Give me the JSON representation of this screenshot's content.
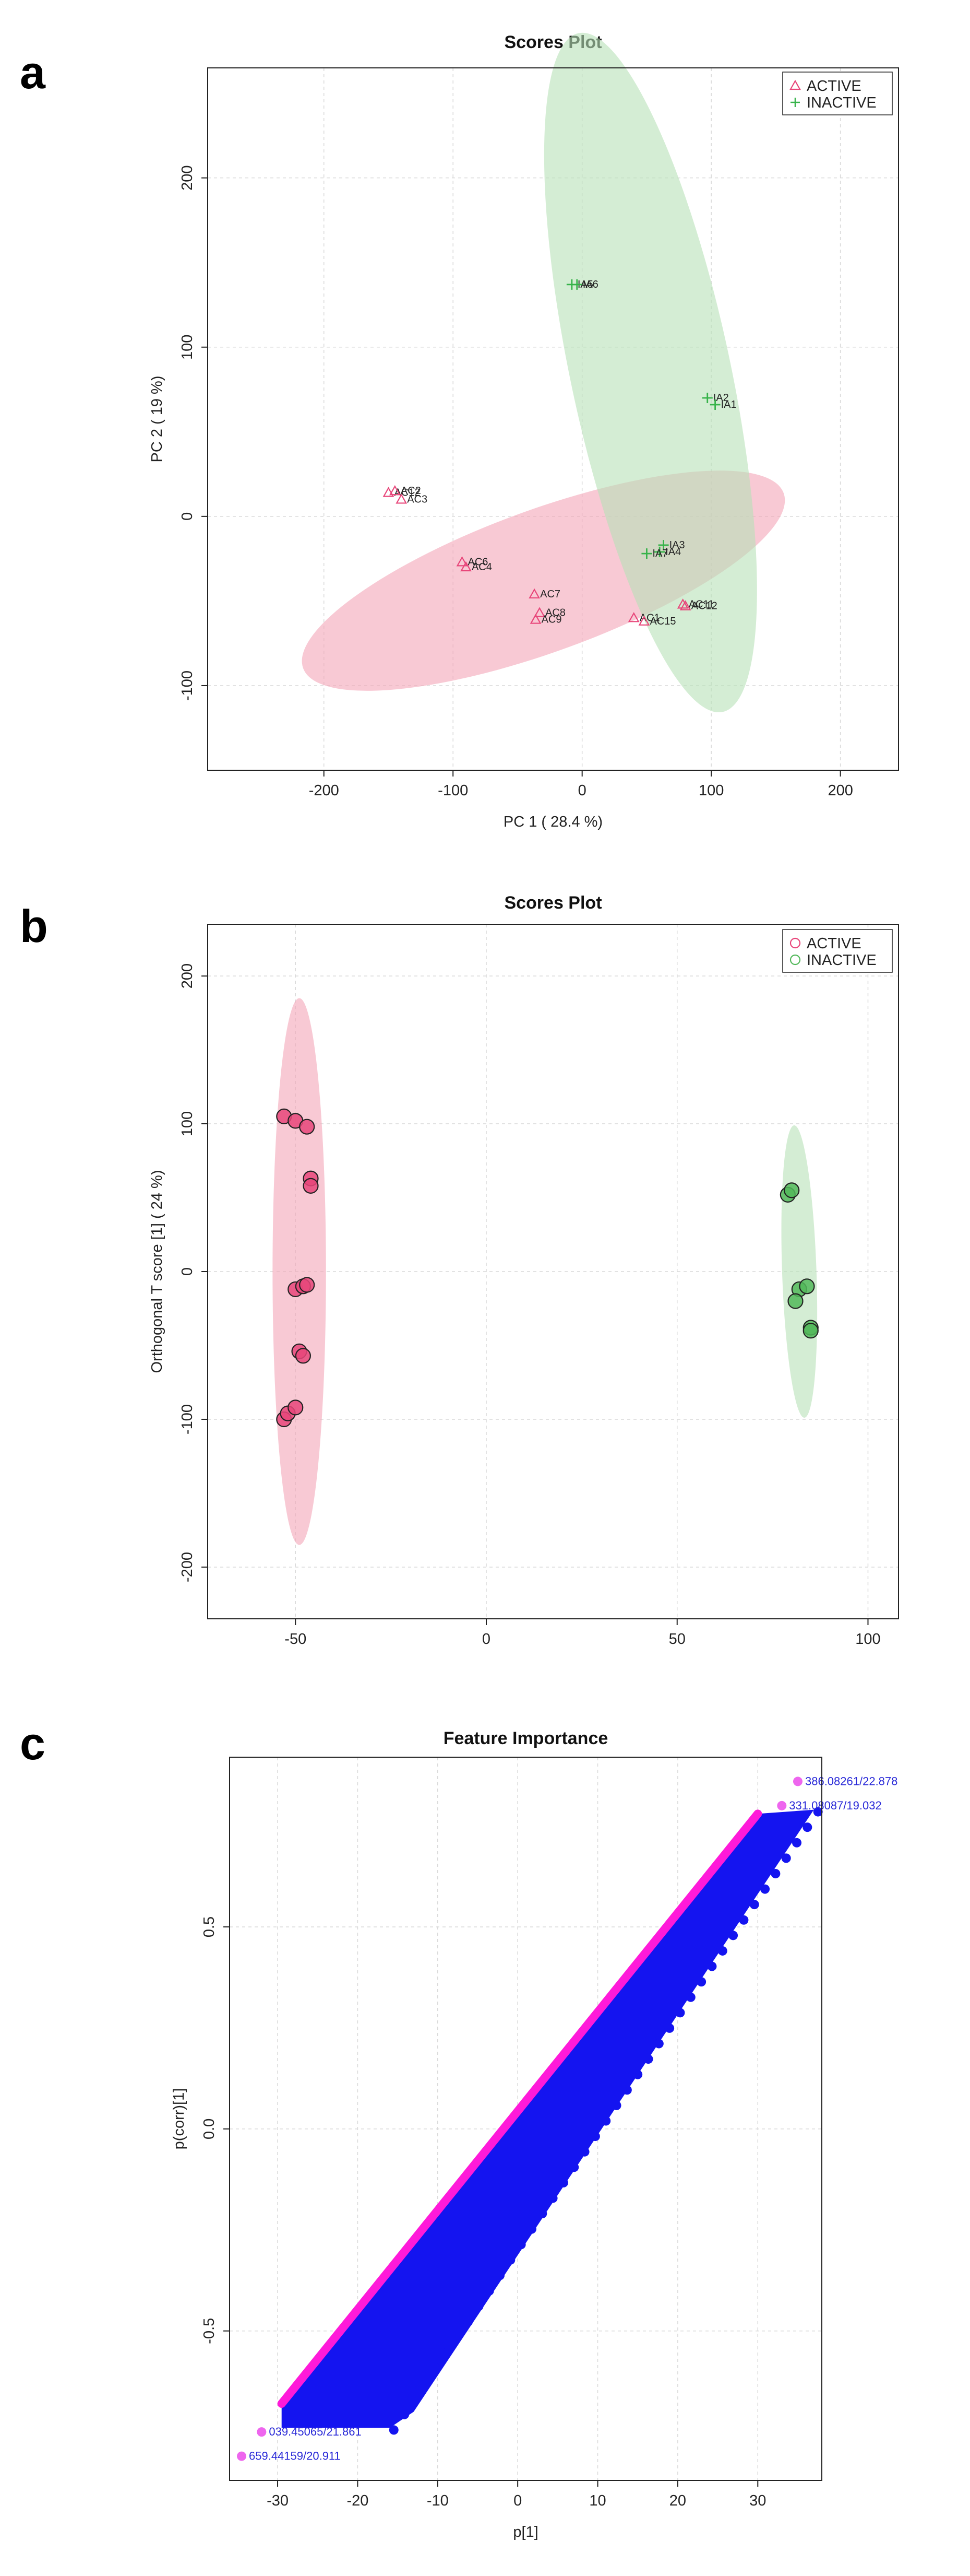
{
  "panels": [
    "a",
    "b",
    "c"
  ],
  "chart_data": [
    {
      "type": "scatter",
      "title": "Scores Plot",
      "xlabel": "PC 1 ( 28.4 %)",
      "ylabel": "PC 2 ( 19 %)",
      "xlim": [
        -290,
        245
      ],
      "ylim": [
        -150,
        265
      ],
      "xticks": [
        -200,
        -100,
        0,
        100,
        200
      ],
      "yticks": [
        -100,
        0,
        100,
        200
      ],
      "grid": true,
      "legend_position": "top-right",
      "series": [
        {
          "name": "ACTIVE",
          "marker": "triangle",
          "color": "#e8467a",
          "ellipse_color": "#f4a5b8",
          "ellipse": {
            "cx": -30,
            "cy": -38,
            "rx": 198,
            "ry": 42,
            "angle_deg": -20
          },
          "points": [
            {
              "x": -150,
              "y": 14,
              "label": "AC12"
            },
            {
              "x": -145,
              "y": 15,
              "label": "AC2"
            },
            {
              "x": -140,
              "y": 10,
              "label": "AC3"
            },
            {
              "x": -93,
              "y": -27,
              "label": "AC6"
            },
            {
              "x": -90,
              "y": -30,
              "label": "AC4"
            },
            {
              "x": -37,
              "y": -46,
              "label": "AC7"
            },
            {
              "x": -33,
              "y": -57,
              "label": "AC8"
            },
            {
              "x": -36,
              "y": -61,
              "label": "AC9"
            },
            {
              "x": 40,
              "y": -60,
              "label": "AC1"
            },
            {
              "x": 48,
              "y": -62,
              "label": "AC15"
            },
            {
              "x": 78,
              "y": -52,
              "label": "AC11"
            },
            {
              "x": 80,
              "y": -53,
              "label": "AC12"
            }
          ]
        },
        {
          "name": "INACTIVE",
          "marker": "plus",
          "color": "#37b34a",
          "ellipse_color": "#b7e1b8",
          "ellipse": {
            "cx": 53,
            "cy": 85,
            "rx": 62,
            "ry": 205,
            "angle_deg": -12
          },
          "points": [
            {
              "x": -8,
              "y": 137,
              "label": "IA5"
            },
            {
              "x": -4,
              "y": 137,
              "label": "IA6"
            },
            {
              "x": 97,
              "y": 70,
              "label": "IA2"
            },
            {
              "x": 103,
              "y": 66,
              "label": "IA1"
            },
            {
              "x": 63,
              "y": -17,
              "label": "IA3"
            },
            {
              "x": 60,
              "y": -21,
              "label": "IA4"
            },
            {
              "x": 50,
              "y": -22,
              "label": "IA7"
            }
          ]
        }
      ]
    },
    {
      "type": "scatter",
      "title": "Scores Plot",
      "xlabel": "",
      "ylabel": "Orthogonal T score [1] ( 24 %)",
      "xlim": [
        -73,
        108
      ],
      "ylim": [
        -235,
        235
      ],
      "xticks": [
        -50,
        0,
        50,
        100
      ],
      "yticks": [
        -200,
        -100,
        0,
        100,
        200
      ],
      "grid": true,
      "legend_position": "top-right",
      "series": [
        {
          "name": "ACTIVE",
          "marker": "circle",
          "color": "#e8467a",
          "ellipse_color": "#f4a5b8",
          "ellipse": {
            "cx": -49,
            "cy": 0,
            "rx": 7,
            "ry": 185,
            "angle_deg": 0
          },
          "points": [
            {
              "x": -53,
              "y": 105
            },
            {
              "x": -50,
              "y": 102
            },
            {
              "x": -47,
              "y": 98
            },
            {
              "x": -46,
              "y": 63
            },
            {
              "x": -46,
              "y": 58
            },
            {
              "x": -50,
              "y": -12
            },
            {
              "x": -48,
              "y": -10
            },
            {
              "x": -47,
              "y": -9
            },
            {
              "x": -49,
              "y": -54
            },
            {
              "x": -48,
              "y": -57
            },
            {
              "x": -53,
              "y": -100
            },
            {
              "x": -52,
              "y": -96
            },
            {
              "x": -50,
              "y": -92
            }
          ]
        },
        {
          "name": "INACTIVE",
          "marker": "circle",
          "color": "#52b85a",
          "ellipse_color": "#b7e1b8",
          "ellipse": {
            "cx": 82,
            "cy": 0,
            "rx": 4.5,
            "ry": 99,
            "angle_deg": -2
          },
          "points": [
            {
              "x": 79,
              "y": 52
            },
            {
              "x": 80,
              "y": 55
            },
            {
              "x": 82,
              "y": -12
            },
            {
              "x": 84,
              "y": -10
            },
            {
              "x": 81,
              "y": -20
            },
            {
              "x": 85,
              "y": -38
            },
            {
              "x": 85,
              "y": -40
            }
          ]
        }
      ]
    },
    {
      "type": "scatter",
      "title": "Feature Importance",
      "xlabel": "p[1]",
      "ylabel": "p(corr)[1]",
      "xlim": [
        -36,
        38
      ],
      "ylim": [
        -0.87,
        0.92
      ],
      "xticks": [
        -30,
        -20,
        -10,
        0,
        10,
        20,
        30
      ],
      "yticks": [
        -0.5,
        0.0,
        0.5
      ],
      "ytick_labels": [
        "-0.5",
        "0.0",
        "0.5"
      ],
      "grid": true,
      "band": {
        "color": "#1414f0",
        "highlight_color": "#ff1ad9",
        "lower_edge": [
          [
            -29.5,
            -0.74
          ],
          [
            30,
            0.76
          ]
        ],
        "upper_edge": [
          [
            -29.5,
            -0.68
          ],
          [
            30,
            0.78
          ]
        ],
        "right_edge": [
          [
            34,
            0.78
          ],
          [
            -16,
            -0.74
          ]
        ],
        "far_right": [
          [
            37,
            0.79
          ],
          [
            -13,
            -0.7
          ]
        ]
      },
      "labeled_points": [
        {
          "x": 35,
          "y": 0.86,
          "label": "386.08261/22.878"
        },
        {
          "x": 33,
          "y": 0.8,
          "label": "331.08087/19.032"
        },
        {
          "x": -32,
          "y": -0.75,
          "label": "039.45065/21.861"
        },
        {
          "x": -34.5,
          "y": -0.81,
          "label": "659.44159/20.911"
        }
      ]
    }
  ]
}
